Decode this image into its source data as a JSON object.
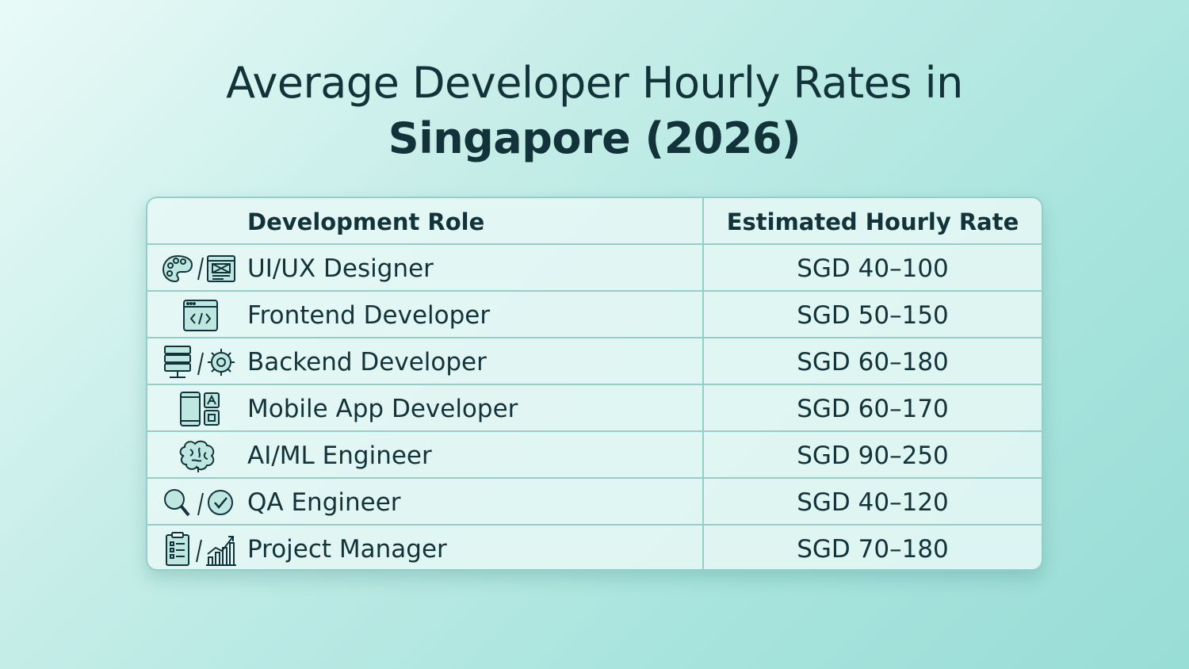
{
  "chart_data": {
    "type": "table",
    "title_line1": "Average Developer Hourly Rates in",
    "title_line2": "Singapore (2026)",
    "columns": [
      "Development Role",
      "Estimated Hourly Rate"
    ],
    "rows": [
      {
        "role": "UI/UX Designer",
        "rate": "SGD 40–100",
        "icon": "palette-and-wireframe-icon"
      },
      {
        "role": "Frontend Developer",
        "rate": "SGD 50–150",
        "icon": "code-window-icon"
      },
      {
        "role": "Backend Developer",
        "rate": "SGD 60–180",
        "icon": "server-and-gear-icon"
      },
      {
        "role": "Mobile App Developer",
        "rate": "SGD 60–170",
        "icon": "smartphone-apps-icon"
      },
      {
        "role": "AI/ML Engineer",
        "rate": "SGD 90–250",
        "icon": "brain-icon"
      },
      {
        "role": "QA Engineer",
        "rate": "SGD 40–120",
        "icon": "magnifier-and-check-icon"
      },
      {
        "role": "Project Manager",
        "rate": "SGD 70–180",
        "icon": "clipboard-and-chart-icon"
      }
    ]
  },
  "colors": {
    "text": "#13333a",
    "border": "#93cfc8",
    "table_bg": "#e8f8f6",
    "background": "#a9e4de"
  }
}
